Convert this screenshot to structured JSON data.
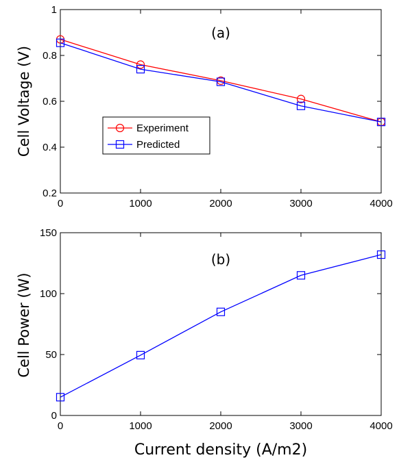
{
  "chart_data": [
    {
      "type": "line",
      "annotation": "(a)",
      "xlabel": "",
      "ylabel": "Cell Voltage (V)",
      "xlim": [
        0,
        4000
      ],
      "ylim": [
        0.2,
        1
      ],
      "xticks": [
        0,
        1000,
        2000,
        3000,
        4000
      ],
      "yticks": [
        0.2,
        0.4,
        0.6,
        0.8,
        1
      ],
      "ytick_labels": [
        "0.2",
        "0.4",
        "0.6",
        "0.8",
        "1"
      ],
      "grid": false,
      "legend_position": "center-left",
      "x": [
        0,
        1000,
        2000,
        3000,
        4000
      ],
      "series": [
        {
          "name": "Experiment",
          "color": "#ff0000",
          "marker": "circle",
          "values": [
            0.87,
            0.76,
            0.69,
            0.61,
            0.51
          ]
        },
        {
          "name": "Predicted",
          "color": "#0000ff",
          "marker": "square",
          "values": [
            0.855,
            0.74,
            0.685,
            0.58,
            0.51
          ]
        }
      ]
    },
    {
      "type": "line",
      "annotation": "(b)",
      "xlabel": "Current density (A/m2)",
      "ylabel": "Cell Power (W)",
      "xlim": [
        0,
        4000
      ],
      "ylim": [
        0,
        150
      ],
      "xticks": [
        0,
        1000,
        2000,
        3000,
        4000
      ],
      "yticks": [
        0,
        50,
        100,
        150
      ],
      "ytick_labels": [
        "0",
        "50",
        "100",
        "150"
      ],
      "grid": false,
      "x": [
        0,
        1000,
        2000,
        3000,
        4000
      ],
      "series": [
        {
          "name": "",
          "color": "#0000ff",
          "marker": "square",
          "values": [
            15,
            49.5,
            85,
            115,
            132
          ]
        }
      ]
    }
  ]
}
